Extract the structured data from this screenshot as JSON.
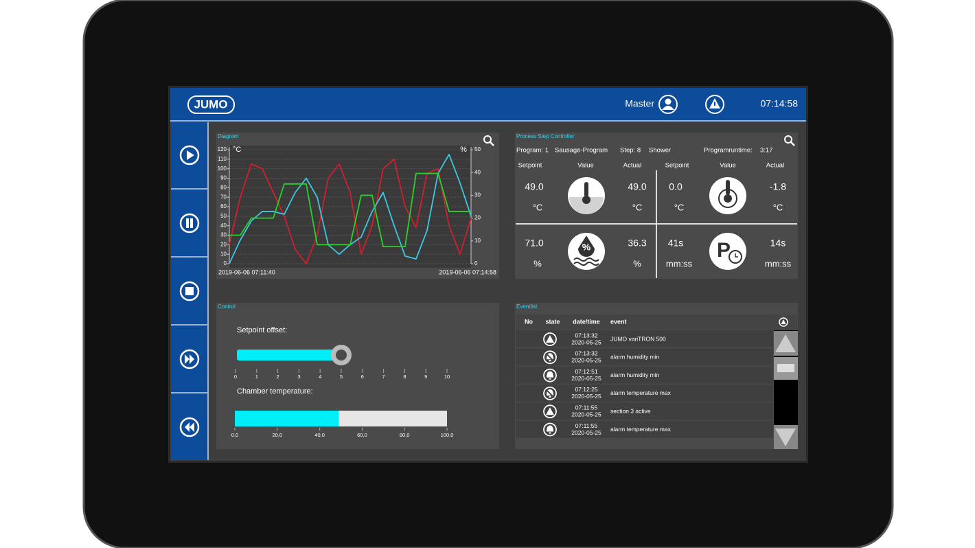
{
  "header": {
    "logo": "JUMO",
    "user": "Master",
    "time": "07:14:58"
  },
  "diagram": {
    "title": "Diagram",
    "chart": {
      "type": "line",
      "categories": [
        "2019-06-06 07:11:40",
        null,
        null,
        null,
        null,
        null,
        null,
        null,
        null,
        null,
        null,
        null,
        null,
        null,
        null,
        null,
        null,
        null,
        null,
        null,
        null,
        null,
        "2019-06-06 07:14:58"
      ],
      "y_label": "°C",
      "y2_label": "%",
      "ylim": [
        0,
        120
      ],
      "yticks": [
        0,
        10,
        20,
        30,
        40,
        50,
        60,
        70,
        80,
        90,
        100,
        110,
        120
      ],
      "y2lim": [
        0,
        50
      ],
      "y2ticks": [
        0,
        10,
        20,
        30,
        40,
        50
      ],
      "grid": true,
      "series": [
        {
          "color": "#d0202e",
          "values": [
            20,
            70,
            105,
            100,
            75,
            50,
            15,
            0,
            30,
            90,
            105,
            75,
            10,
            40,
            100,
            110,
            60,
            38,
            95,
            100,
            40,
            10,
            48
          ]
        },
        {
          "color": "#3cc8e0",
          "values": [
            0,
            25,
            45,
            55,
            55,
            52,
            75,
            90,
            70,
            20,
            10,
            20,
            28,
            55,
            75,
            40,
            8,
            5,
            35,
            95,
            115,
            85,
            50
          ]
        },
        {
          "color": "#2bd12b",
          "values": [
            30,
            30,
            48,
            48,
            48,
            84,
            84,
            84,
            20,
            20,
            20,
            20,
            72,
            72,
            18,
            18,
            18,
            95,
            95,
            95,
            55,
            55,
            55
          ]
        }
      ]
    }
  },
  "process": {
    "title": "Process Step Controller",
    "program_label": "Program: 1",
    "program_name": "Sausage-Program",
    "step_label": "Step: 8",
    "step_name": "Shower",
    "runtime_label": "Programruntime:",
    "runtime": "3:17",
    "columns": [
      "Setpoint",
      "Value",
      "Actual",
      "Setpoint",
      "Value",
      "Actual"
    ],
    "cells": [
      {
        "setpoint": "49.0",
        "setpoint_unit": "°C",
        "actual": "49.0",
        "actual_unit": "°C"
      },
      {
        "setpoint": "0.0",
        "setpoint_unit": "°C",
        "actual": "-1.8",
        "actual_unit": "°C"
      },
      {
        "setpoint": "71.0",
        "setpoint_unit": "%",
        "actual": "36.3",
        "actual_unit": "%"
      },
      {
        "setpoint": "41s",
        "setpoint_unit": "mm:ss",
        "actual": "14s",
        "actual_unit": "mm:ss"
      }
    ]
  },
  "control": {
    "title": "Control",
    "offset_label": "Setpoint offset:",
    "offset": 5,
    "offset_lim": [
      0,
      10
    ],
    "offset_ticks": [
      0,
      1,
      2,
      3,
      4,
      5,
      6,
      7,
      8,
      9,
      10
    ],
    "temp_label": "Chamber temperature:",
    "temperature": 49,
    "temp_lim": [
      0,
      100
    ],
    "temp_ticks": [
      {
        "value": 0,
        "label": "0,0"
      },
      {
        "value": 20,
        "label": "20,0"
      },
      {
        "value": 40,
        "label": "40,0"
      },
      {
        "value": 60,
        "label": "60,0"
      },
      {
        "value": 80,
        "label": "80,0"
      },
      {
        "value": 100,
        "label": "100,0"
      }
    ]
  },
  "eventlist": {
    "title": "Eventlist",
    "columns": [
      "No",
      "state",
      "date/time",
      "event"
    ],
    "rows": [
      {
        "state": "warning",
        "time": "07:13:32",
        "date": "2020-05-25",
        "event": "JUMO variTRON 500"
      },
      {
        "state": "bell-off",
        "time": "07:13:32",
        "date": "2020-05-25",
        "event": "alarm humidity min"
      },
      {
        "state": "bell",
        "time": "07:12:51",
        "date": "2020-05-25",
        "event": "alarm humidity min"
      },
      {
        "state": "bell-off",
        "time": "07:12:25",
        "date": "2020-05-25",
        "event": "alarm temperature max"
      },
      {
        "state": "warning",
        "time": "07:11:55",
        "date": "2020-05-25",
        "event": "section 3 active"
      },
      {
        "state": "bell",
        "time": "07:11:55",
        "date": "2020-05-25",
        "event": "alarm temperature max"
      }
    ]
  }
}
